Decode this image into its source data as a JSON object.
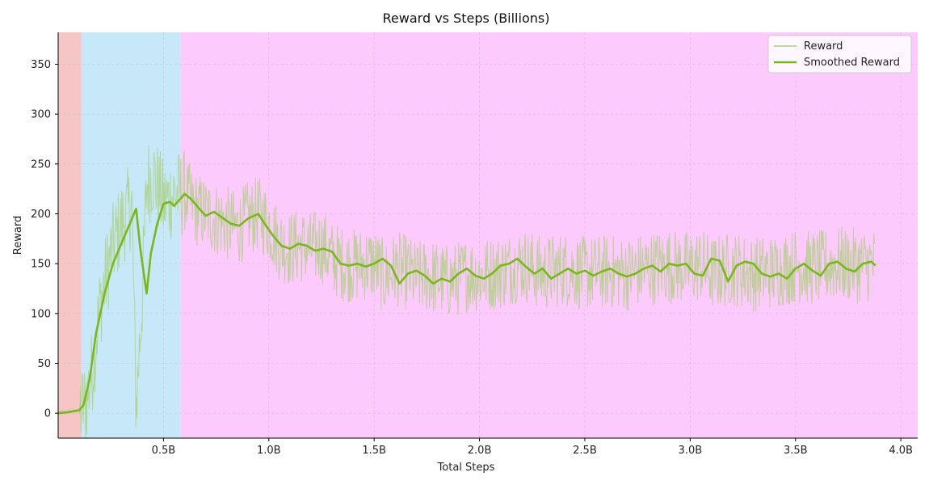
{
  "chart_data": {
    "type": "line",
    "title": "Reward vs Steps (Billions)",
    "xlabel": "Total Steps",
    "ylabel": "Reward",
    "xlim": [
      0.0,
      4.08
    ],
    "ylim": [
      -25,
      382
    ],
    "x_ticks": [
      0.5,
      1.0,
      1.5,
      2.0,
      2.5,
      3.0,
      3.5,
      4.0
    ],
    "x_tick_labels": [
      "0.5B",
      "1.0B",
      "1.5B",
      "2.0B",
      "2.5B",
      "3.0B",
      "3.5B",
      "4.0B"
    ],
    "y_ticks": [
      0,
      50,
      100,
      150,
      200,
      250,
      300,
      350
    ],
    "y_tick_labels": [
      "0",
      "50",
      "100",
      "150",
      "200",
      "250",
      "300",
      "350"
    ],
    "grid": true,
    "legend_position": "top-right",
    "background_bands": [
      {
        "x0": 0.0,
        "x1": 0.11,
        "color": "#f6c6c6"
      },
      {
        "x0": 0.11,
        "x1": 0.58,
        "color": "#c7e8f8"
      },
      {
        "x0": 0.58,
        "x1": 4.08,
        "color": "#fdcafd"
      }
    ],
    "series": [
      {
        "name": "Reward",
        "style": "raw",
        "color": "#a9cf7a",
        "x": [
          0.0,
          0.05,
          0.1,
          0.13,
          0.16,
          0.2,
          0.25,
          0.3,
          0.35,
          0.37,
          0.4,
          0.42,
          0.45,
          0.5,
          0.55,
          0.6,
          0.65,
          0.7,
          0.75,
          0.8,
          0.85,
          0.9,
          0.95,
          1.0,
          1.05,
          1.1,
          1.15,
          1.2,
          1.25,
          1.3,
          1.35,
          1.4,
          1.45,
          1.5,
          1.55,
          1.6,
          1.65,
          1.7,
          1.75,
          1.8,
          1.85,
          1.9,
          1.95,
          2.0,
          2.1,
          2.2,
          2.3,
          2.4,
          2.5,
          2.6,
          2.7,
          2.8,
          2.9,
          3.0,
          3.05,
          3.1,
          3.2,
          3.3,
          3.4,
          3.5,
          3.6,
          3.7,
          3.8,
          3.88
        ],
        "values": [
          0,
          2,
          3,
          10,
          40,
          110,
          160,
          190,
          210,
          5,
          120,
          230,
          240,
          210,
          220,
          220,
          205,
          200,
          195,
          190,
          185,
          195,
          200,
          190,
          170,
          165,
          168,
          165,
          168,
          155,
          150,
          148,
          150,
          150,
          135,
          145,
          142,
          135,
          138,
          135,
          132,
          135,
          140,
          138,
          142,
          150,
          140,
          145,
          140,
          142,
          140,
          145,
          148,
          145,
          150,
          140,
          145,
          140,
          142,
          148,
          145,
          150,
          148,
          150
        ]
      },
      {
        "name": "Smoothed Reward",
        "style": "smooth",
        "color": "#79b81a",
        "x": [
          0.0,
          0.05,
          0.1,
          0.12,
          0.15,
          0.18,
          0.22,
          0.26,
          0.3,
          0.34,
          0.37,
          0.39,
          0.42,
          0.44,
          0.47,
          0.5,
          0.53,
          0.55,
          0.58,
          0.6,
          0.63,
          0.67,
          0.7,
          0.74,
          0.78,
          0.82,
          0.86,
          0.9,
          0.95,
          0.98,
          1.02,
          1.06,
          1.1,
          1.14,
          1.18,
          1.22,
          1.26,
          1.3,
          1.34,
          1.38,
          1.42,
          1.46,
          1.5,
          1.54,
          1.58,
          1.62,
          1.66,
          1.7,
          1.74,
          1.78,
          1.82,
          1.86,
          1.9,
          1.94,
          1.98,
          2.02,
          2.06,
          2.1,
          2.14,
          2.18,
          2.22,
          2.26,
          2.3,
          2.34,
          2.38,
          2.42,
          2.46,
          2.5,
          2.54,
          2.58,
          2.62,
          2.66,
          2.7,
          2.74,
          2.78,
          2.82,
          2.86,
          2.9,
          2.94,
          2.98,
          3.02,
          3.06,
          3.1,
          3.14,
          3.18,
          3.22,
          3.26,
          3.3,
          3.34,
          3.38,
          3.42,
          3.46,
          3.5,
          3.54,
          3.58,
          3.62,
          3.66,
          3.7,
          3.74,
          3.78,
          3.82,
          3.86,
          3.88
        ],
        "values": [
          0,
          1,
          3,
          8,
          35,
          80,
          120,
          150,
          170,
          190,
          205,
          165,
          120,
          160,
          190,
          210,
          212,
          208,
          215,
          220,
          215,
          205,
          198,
          202,
          196,
          190,
          188,
          195,
          200,
          190,
          178,
          168,
          165,
          170,
          168,
          163,
          165,
          162,
          150,
          148,
          150,
          147,
          150,
          155,
          148,
          130,
          140,
          143,
          138,
          130,
          135,
          132,
          140,
          145,
          138,
          135,
          140,
          148,
          150,
          155,
          147,
          140,
          145,
          135,
          140,
          145,
          140,
          143,
          138,
          142,
          145,
          140,
          137,
          140,
          145,
          148,
          142,
          150,
          148,
          150,
          140,
          138,
          155,
          153,
          132,
          148,
          152,
          150,
          140,
          137,
          140,
          135,
          145,
          150,
          143,
          138,
          150,
          152,
          145,
          142,
          150,
          152,
          148
        ]
      }
    ]
  }
}
